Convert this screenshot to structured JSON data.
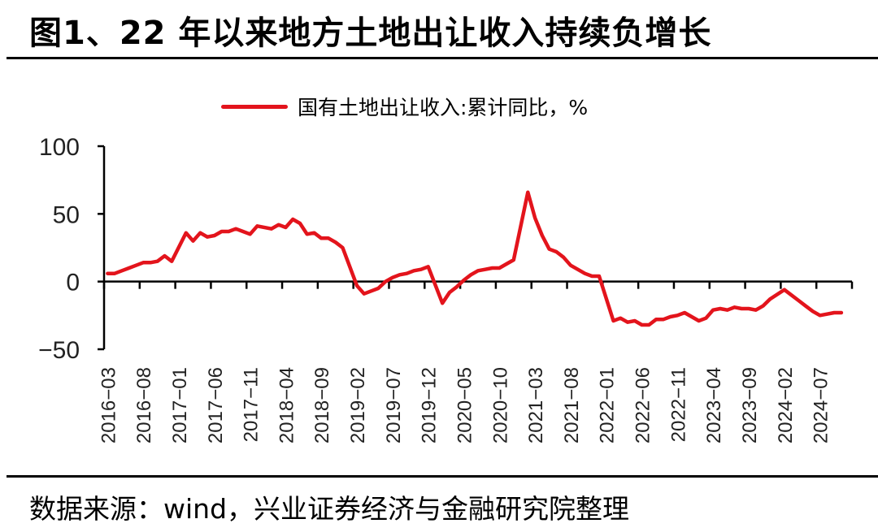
{
  "header": {
    "title": "图1、22 年以来地方土地出让收入持续负增长"
  },
  "footer": {
    "source": "数据来源：wind，兴业证券经济与金融研究院整理"
  },
  "colors": {
    "series": "#e3141c",
    "axis": "#000000"
  },
  "chart_data": {
    "type": "line",
    "title": "图1、22 年以来地方土地出让收入持续负增长",
    "xlabel": "",
    "ylabel": "",
    "ylim": [
      -50,
      100
    ],
    "yticks": [
      100,
      50,
      0,
      -50
    ],
    "grid": false,
    "legend_position": "top",
    "xtick_labels": [
      "2016-03",
      "2016-08",
      "2017-01",
      "2017-06",
      "2017-11",
      "2018-04",
      "2018-09",
      "2019-02",
      "2019-07",
      "2019-12",
      "2020-05",
      "2020-10",
      "2021-03",
      "2021-08",
      "2022-01",
      "2022-06",
      "2022-11",
      "2023-04",
      "2023-09",
      "2024-02",
      "2024-07"
    ],
    "series": [
      {
        "name": "国有土地出让收入:累计同比，%",
        "color": "#e3141c",
        "x": [
          "2016-03",
          "2016-04",
          "2016-05",
          "2016-06",
          "2016-07",
          "2016-08",
          "2016-09",
          "2016-10",
          "2016-11",
          "2016-12",
          "2017-02",
          "2017-03",
          "2017-04",
          "2017-05",
          "2017-06",
          "2017-07",
          "2017-08",
          "2017-09",
          "2017-10",
          "2017-11",
          "2017-12",
          "2018-02",
          "2018-03",
          "2018-04",
          "2018-05",
          "2018-06",
          "2018-07",
          "2018-08",
          "2018-09",
          "2018-10",
          "2018-11",
          "2018-12",
          "2019-02",
          "2019-03",
          "2019-04",
          "2019-05",
          "2019-06",
          "2019-07",
          "2019-08",
          "2019-09",
          "2019-10",
          "2019-11",
          "2019-12",
          "2020-02",
          "2020-03",
          "2020-04",
          "2020-05",
          "2020-06",
          "2020-07",
          "2020-08",
          "2020-09",
          "2020-10",
          "2020-11",
          "2020-12",
          "2021-02",
          "2021-03",
          "2021-04",
          "2021-05",
          "2021-06",
          "2021-07",
          "2021-08",
          "2021-09",
          "2021-10",
          "2021-11",
          "2021-12",
          "2022-02",
          "2022-03",
          "2022-04",
          "2022-05",
          "2022-06",
          "2022-07",
          "2022-08",
          "2022-09",
          "2022-10",
          "2022-11",
          "2022-12",
          "2023-02",
          "2023-03",
          "2023-04",
          "2023-05",
          "2023-06",
          "2023-07",
          "2023-08",
          "2023-09",
          "2023-10",
          "2023-11",
          "2023-12",
          "2024-02",
          "2024-03",
          "2024-04",
          "2024-05",
          "2024-06",
          "2024-07",
          "2024-08",
          "2024-09",
          "2024-10"
        ],
        "values": [
          6,
          6,
          8,
          10,
          12,
          14,
          14,
          15,
          19,
          15,
          36,
          30,
          36,
          33,
          34,
          37,
          37,
          39,
          37,
          35,
          41,
          39,
          42,
          40,
          46,
          43,
          35,
          36,
          32,
          32,
          29,
          25,
          -3,
          -9,
          -7,
          -5,
          0,
          3,
          5,
          6,
          8,
          9,
          11,
          -16,
          -8,
          -4,
          1,
          5,
          8,
          9,
          10,
          10,
          13,
          16,
          66,
          47,
          34,
          24,
          22,
          18,
          12,
          9,
          6,
          4,
          4,
          -29,
          -27,
          -30,
          -29,
          -32,
          -32,
          -28,
          -28,
          -26,
          -25,
          -23,
          -29,
          -27,
          -21,
          -20,
          -21,
          -19,
          -20,
          -20,
          -21,
          -18,
          -13,
          -6,
          -10,
          -14,
          -18,
          -22,
          -25,
          -24,
          -23,
          -23
        ]
      }
    ]
  }
}
